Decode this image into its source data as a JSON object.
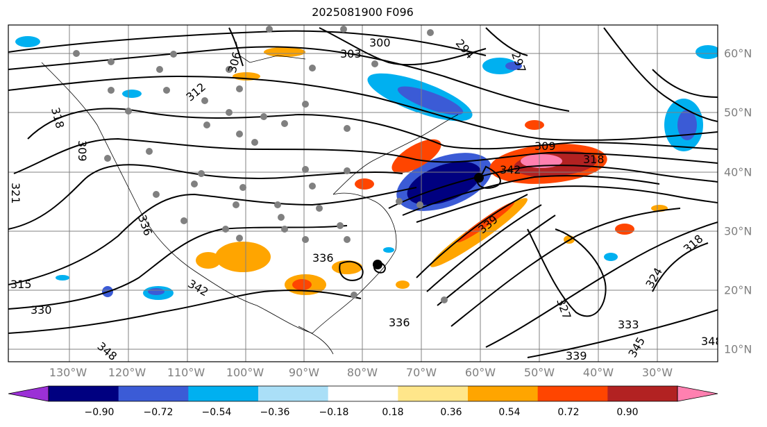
{
  "title": "2025081900 F096",
  "lon_labels": [
    "130°W",
    "120°W",
    "110°W",
    "100°W",
    "90°W",
    "80°W",
    "70°W",
    "60°W",
    "50°W",
    "40°W",
    "30°W"
  ],
  "lat_labels": [
    "60°N",
    "50°N",
    "40°N",
    "30°N",
    "20°N",
    "10°N"
  ],
  "colorbar": {
    "ticks": [
      "−0.90",
      "−0.72",
      "−0.54",
      "−0.36",
      "−0.18",
      "0.18",
      "0.36",
      "0.54",
      "0.72",
      "0.90"
    ],
    "colors": [
      "#9b30d6",
      "#000080",
      "#3b5bd6",
      "#00b0f0",
      "#aadff7",
      "#ffffff",
      "#ffe68a",
      "#ffa500",
      "#ff4500",
      "#b22222",
      "#ff80b0"
    ]
  },
  "contour_labels": [
    "303",
    "300",
    "294",
    "297",
    "312",
    "306",
    "315",
    "318",
    "309",
    "321",
    "336",
    "342",
    "339",
    "330",
    "348",
    "327",
    "333",
    "324",
    "345"
  ],
  "colors": {
    "contour": "#000000",
    "station": "#808080",
    "grid": "#808080"
  }
}
